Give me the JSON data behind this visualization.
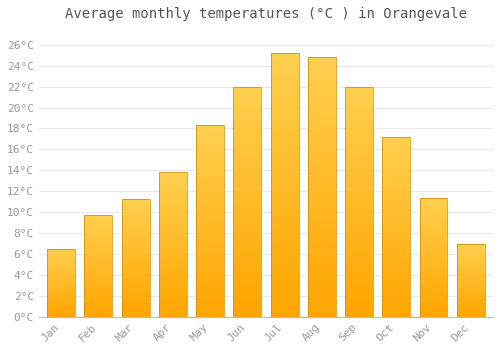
{
  "title": "Average monthly temperatures (°C ) in Orangevale",
  "months": [
    "Jan",
    "Feb",
    "Mar",
    "Apr",
    "May",
    "Jun",
    "Jul",
    "Aug",
    "Sep",
    "Oct",
    "Nov",
    "Dec"
  ],
  "temperatures": [
    6.5,
    9.7,
    11.3,
    13.8,
    18.3,
    22.0,
    25.2,
    24.8,
    22.0,
    17.2,
    11.4,
    7.0
  ],
  "bar_color_bottom": "#FFA500",
  "bar_color_top": "#FFD050",
  "background_color": "#ffffff",
  "grid_color": "#e8e8e8",
  "ytick_labels": [
    "0°C",
    "2°C",
    "4°C",
    "6°C",
    "8°C",
    "10°C",
    "12°C",
    "14°C",
    "16°C",
    "18°C",
    "20°C",
    "22°C",
    "24°C",
    "26°C"
  ],
  "ytick_values": [
    0,
    2,
    4,
    6,
    8,
    10,
    12,
    14,
    16,
    18,
    20,
    22,
    24,
    26
  ],
  "ylim": [
    0,
    27.5
  ],
  "title_fontsize": 10,
  "tick_fontsize": 8,
  "tick_font_color": "#999999",
  "title_font_color": "#555555",
  "bar_width": 0.75,
  "bar_edge_color": "#CC8800",
  "bar_edge_linewidth": 0.5
}
